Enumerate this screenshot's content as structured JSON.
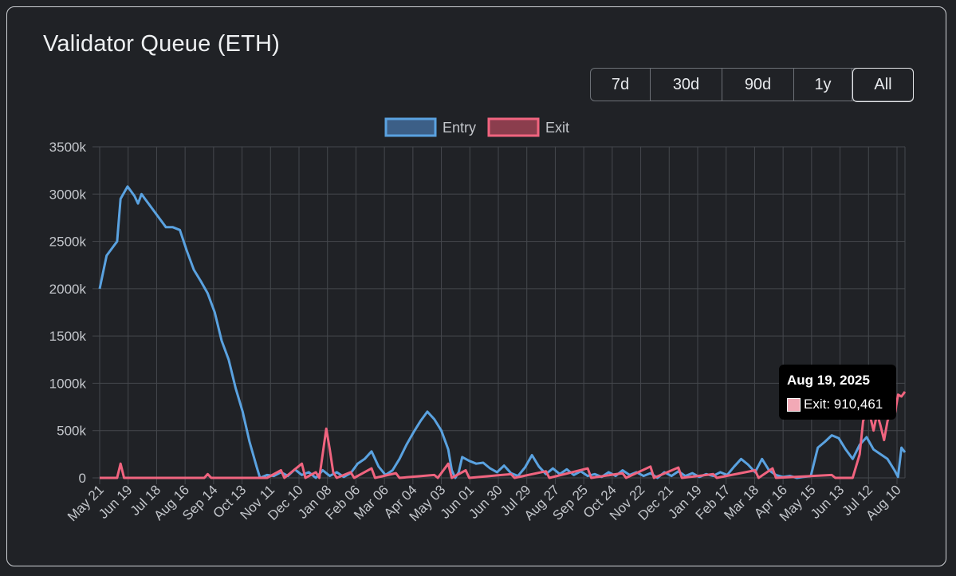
{
  "title": "Validator Queue (ETH)",
  "range_buttons": [
    {
      "label": "7d",
      "active": false
    },
    {
      "label": "30d",
      "active": false
    },
    {
      "label": "90d",
      "active": false
    },
    {
      "label": "1y",
      "active": false
    },
    {
      "label": "All",
      "active": true
    }
  ],
  "tooltip": {
    "date": "Aug 19, 2025",
    "series": "Exit",
    "value": "910,461",
    "label": "Exit: 910,461"
  },
  "colors": {
    "entry": "#5aa2e0",
    "exit": "#f0647f",
    "background": "#202226",
    "grid": "#45484d",
    "tick": "#c3c6cb"
  },
  "chart_data": {
    "type": "line",
    "title": "Validator Queue (ETH)",
    "xlabel": "",
    "ylabel": "",
    "ylim": [
      0,
      3500000
    ],
    "y_ticks": [
      "0",
      "500k",
      "1000k",
      "1500k",
      "2000k",
      "2500k",
      "3000k",
      "3500k"
    ],
    "x_ticks": [
      "May 21",
      "Jun 19",
      "Jul 18",
      "Aug 16",
      "Sep 14",
      "Oct 13",
      "Nov 11",
      "Dec 10",
      "Jan 08",
      "Feb 06",
      "Mar 06",
      "Apr 04",
      "May 03",
      "Jun 01",
      "Jun 30",
      "Jul 29",
      "Aug 27",
      "Sep 25",
      "Oct 24",
      "Nov 22",
      "Dec 21",
      "Jan 19",
      "Feb 17",
      "Mar 18",
      "Apr 16",
      "May 15",
      "Jun 13",
      "Jul 12",
      "Aug 10"
    ],
    "grid": true,
    "legend_position": "top-center",
    "series": [
      {
        "name": "Entry",
        "color": "#5aa2e0",
        "points": [
          [
            0,
            2000000
          ],
          [
            2,
            2350000
          ],
          [
            4,
            2450000
          ],
          [
            5,
            2500000
          ],
          [
            6,
            2950000
          ],
          [
            8,
            3080000
          ],
          [
            10,
            2980000
          ],
          [
            11,
            2900000
          ],
          [
            12,
            3000000
          ],
          [
            13,
            2950000
          ],
          [
            15,
            2850000
          ],
          [
            17,
            2750000
          ],
          [
            19,
            2650000
          ],
          [
            21,
            2650000
          ],
          [
            23,
            2620000
          ],
          [
            25,
            2400000
          ],
          [
            27,
            2200000
          ],
          [
            29,
            2080000
          ],
          [
            31,
            1950000
          ],
          [
            33,
            1750000
          ],
          [
            35,
            1450000
          ],
          [
            37,
            1250000
          ],
          [
            39,
            950000
          ],
          [
            41,
            700000
          ],
          [
            43,
            380000
          ],
          [
            45,
            120000
          ],
          [
            46,
            0
          ],
          [
            48,
            30000
          ],
          [
            50,
            20000
          ],
          [
            52,
            60000
          ],
          [
            54,
            20000
          ],
          [
            56,
            90000
          ],
          [
            58,
            30000
          ],
          [
            60,
            60000
          ],
          [
            62,
            0
          ],
          [
            64,
            80000
          ],
          [
            66,
            20000
          ],
          [
            68,
            60000
          ],
          [
            70,
            10000
          ],
          [
            72,
            50000
          ],
          [
            74,
            150000
          ],
          [
            76,
            200000
          ],
          [
            78,
            280000
          ],
          [
            80,
            120000
          ],
          [
            82,
            30000
          ],
          [
            84,
            80000
          ],
          [
            86,
            200000
          ],
          [
            88,
            350000
          ],
          [
            90,
            480000
          ],
          [
            92,
            600000
          ],
          [
            94,
            700000
          ],
          [
            96,
            620000
          ],
          [
            98,
            500000
          ],
          [
            100,
            300000
          ],
          [
            101,
            80000
          ],
          [
            102,
            0
          ],
          [
            103,
            60000
          ],
          [
            104,
            220000
          ],
          [
            106,
            180000
          ],
          [
            108,
            150000
          ],
          [
            110,
            160000
          ],
          [
            112,
            100000
          ],
          [
            114,
            60000
          ],
          [
            116,
            130000
          ],
          [
            118,
            50000
          ],
          [
            120,
            20000
          ],
          [
            122,
            110000
          ],
          [
            124,
            240000
          ],
          [
            126,
            120000
          ],
          [
            128,
            40000
          ],
          [
            130,
            100000
          ],
          [
            132,
            40000
          ],
          [
            134,
            90000
          ],
          [
            136,
            30000
          ],
          [
            138,
            70000
          ],
          [
            140,
            20000
          ],
          [
            142,
            40000
          ],
          [
            144,
            10000
          ],
          [
            146,
            60000
          ],
          [
            148,
            20000
          ],
          [
            150,
            80000
          ],
          [
            152,
            30000
          ],
          [
            154,
            60000
          ],
          [
            156,
            20000
          ],
          [
            158,
            50000
          ],
          [
            160,
            0
          ],
          [
            162,
            60000
          ],
          [
            164,
            20000
          ],
          [
            166,
            70000
          ],
          [
            168,
            20000
          ],
          [
            170,
            50000
          ],
          [
            172,
            10000
          ],
          [
            174,
            40000
          ],
          [
            176,
            20000
          ],
          [
            178,
            60000
          ],
          [
            180,
            30000
          ],
          [
            182,
            120000
          ],
          [
            184,
            200000
          ],
          [
            186,
            140000
          ],
          [
            188,
            60000
          ],
          [
            190,
            200000
          ],
          [
            192,
            80000
          ],
          [
            194,
            30000
          ],
          [
            196,
            10000
          ],
          [
            198,
            20000
          ],
          [
            200,
            0
          ],
          [
            202,
            10000
          ],
          [
            204,
            20000
          ],
          [
            206,
            320000
          ],
          [
            208,
            380000
          ],
          [
            210,
            450000
          ],
          [
            212,
            420000
          ],
          [
            214,
            300000
          ],
          [
            216,
            200000
          ],
          [
            218,
            350000
          ],
          [
            220,
            430000
          ],
          [
            222,
            300000
          ],
          [
            224,
            250000
          ],
          [
            226,
            200000
          ],
          [
            228,
            80000
          ],
          [
            229,
            10000
          ],
          [
            230,
            320000
          ],
          [
            231,
            270000
          ]
        ]
      },
      {
        "name": "Exit",
        "color": "#f0647f",
        "points": [
          [
            0,
            0
          ],
          [
            5,
            0
          ],
          [
            6,
            150000
          ],
          [
            7,
            0
          ],
          [
            30,
            0
          ],
          [
            31,
            40000
          ],
          [
            32,
            0
          ],
          [
            48,
            0
          ],
          [
            52,
            80000
          ],
          [
            53,
            0
          ],
          [
            58,
            150000
          ],
          [
            59,
            0
          ],
          [
            62,
            60000
          ],
          [
            63,
            0
          ],
          [
            65,
            520000
          ],
          [
            66,
            300000
          ],
          [
            67,
            60000
          ],
          [
            68,
            0
          ],
          [
            72,
            60000
          ],
          [
            73,
            0
          ],
          [
            78,
            100000
          ],
          [
            79,
            0
          ],
          [
            85,
            50000
          ],
          [
            86,
            0
          ],
          [
            96,
            30000
          ],
          [
            97,
            0
          ],
          [
            100,
            150000
          ],
          [
            101,
            0
          ],
          [
            105,
            80000
          ],
          [
            106,
            0
          ],
          [
            118,
            40000
          ],
          [
            119,
            0
          ],
          [
            128,
            70000
          ],
          [
            129,
            0
          ],
          [
            140,
            100000
          ],
          [
            141,
            0
          ],
          [
            150,
            50000
          ],
          [
            151,
            0
          ],
          [
            158,
            120000
          ],
          [
            159,
            0
          ],
          [
            166,
            110000
          ],
          [
            167,
            0
          ],
          [
            176,
            40000
          ],
          [
            177,
            0
          ],
          [
            188,
            80000
          ],
          [
            189,
            0
          ],
          [
            193,
            100000
          ],
          [
            194,
            0
          ],
          [
            210,
            30000
          ],
          [
            211,
            0
          ],
          [
            216,
            0
          ],
          [
            218,
            250000
          ],
          [
            219,
            600000
          ],
          [
            220,
            700000
          ],
          [
            221,
            650000
          ],
          [
            222,
            500000
          ],
          [
            223,
            680000
          ],
          [
            224,
            550000
          ],
          [
            225,
            400000
          ],
          [
            226,
            600000
          ],
          [
            227,
            700000
          ],
          [
            228,
            650000
          ],
          [
            229,
            880000
          ],
          [
            230,
            860000
          ],
          [
            231,
            910461
          ]
        ]
      }
    ],
    "x_range": [
      0,
      231
    ]
  }
}
